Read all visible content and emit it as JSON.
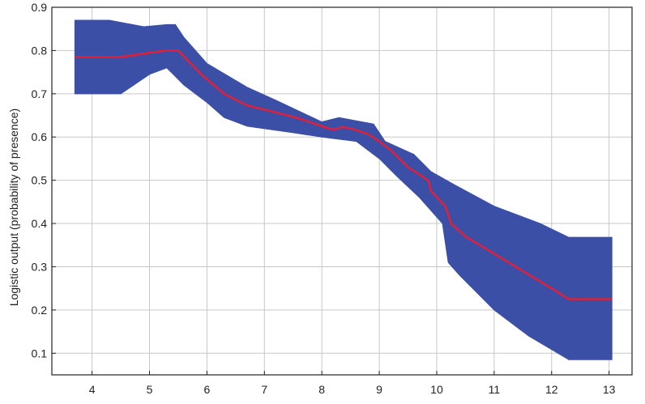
{
  "chart_data": {
    "type": "area",
    "title": "",
    "xlabel": "",
    "ylabel": "Logistic output (probability of presence)",
    "xlim": [
      3.3,
      13.4
    ],
    "ylim": [
      0.05,
      0.9
    ],
    "xticks": [
      4,
      5,
      6,
      7,
      8,
      9,
      10,
      11,
      12,
      13
    ],
    "yticks": [
      0.1,
      0.2,
      0.3,
      0.4,
      0.5,
      0.6,
      0.7,
      0.8,
      0.9
    ],
    "xtick_labels": [
      "4",
      "5",
      "6",
      "7",
      "8",
      "9",
      "10",
      "11",
      "12",
      "13"
    ],
    "ytick_labels": [
      "0.1",
      "0.2",
      "0.3",
      "0.4",
      "0.5",
      "0.6",
      "0.7",
      "0.8",
      "0.9"
    ],
    "grid": true,
    "legend": "none",
    "colors": {
      "band": "#3c4fa6",
      "line": "#e0203a",
      "grid": "#c8c8c8",
      "axis": "#222222"
    },
    "series": [
      {
        "role": "mean",
        "x": [
          3.7,
          4.5,
          5.0,
          5.3,
          5.5,
          5.9,
          6.3,
          6.7,
          7.2,
          7.6,
          8.0,
          8.2,
          8.35,
          8.5,
          8.8,
          9.0,
          9.2,
          9.5,
          9.85,
          9.9,
          10.15,
          10.25,
          10.5,
          11.0,
          11.5,
          12.0,
          12.3,
          13.05
        ],
        "values": [
          0.785,
          0.785,
          0.795,
          0.8,
          0.8,
          0.745,
          0.7,
          0.673,
          0.657,
          0.643,
          0.625,
          0.617,
          0.623,
          0.62,
          0.607,
          0.59,
          0.57,
          0.53,
          0.5,
          0.475,
          0.44,
          0.4,
          0.37,
          0.33,
          0.29,
          0.25,
          0.225,
          0.225
        ]
      },
      {
        "role": "upper",
        "x": [
          3.7,
          4.3,
          4.9,
          5.3,
          5.45,
          5.6,
          6.0,
          6.7,
          7.2,
          8.0,
          8.3,
          8.9,
          9.1,
          9.6,
          9.9,
          10.3,
          11.0,
          11.8,
          12.3,
          13.05
        ],
        "values": [
          0.87,
          0.87,
          0.855,
          0.86,
          0.86,
          0.83,
          0.77,
          0.715,
          0.685,
          0.635,
          0.645,
          0.63,
          0.59,
          0.56,
          0.52,
          0.49,
          0.44,
          0.4,
          0.368,
          0.368
        ]
      },
      {
        "role": "lower",
        "x": [
          3.7,
          4.5,
          5.0,
          5.3,
          5.45,
          5.6,
          6.0,
          6.3,
          6.7,
          7.5,
          8.0,
          8.6,
          9.0,
          9.3,
          9.7,
          10.1,
          10.2,
          10.4,
          11.0,
          11.6,
          12.3,
          13.05
        ],
        "values": [
          0.7,
          0.7,
          0.745,
          0.76,
          0.74,
          0.72,
          0.68,
          0.645,
          0.625,
          0.61,
          0.6,
          0.59,
          0.55,
          0.51,
          0.46,
          0.4,
          0.31,
          0.28,
          0.2,
          0.14,
          0.085,
          0.085
        ]
      }
    ]
  }
}
